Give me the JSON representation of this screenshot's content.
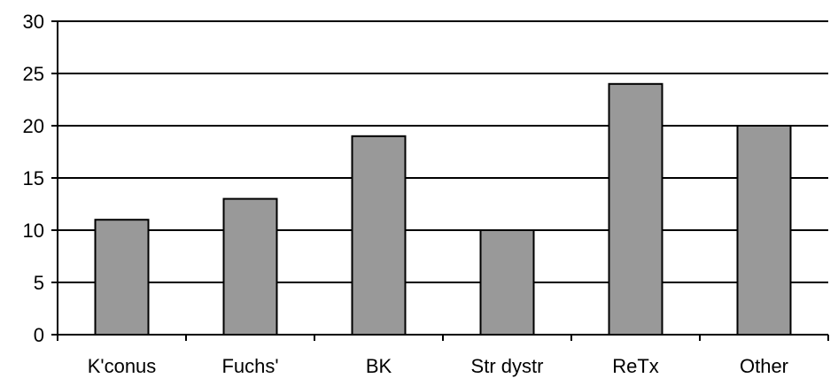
{
  "chart_data": {
    "type": "bar",
    "categories": [
      "K'conus",
      "Fuchs'",
      "BK",
      "Str dystr",
      "ReTx",
      "Other"
    ],
    "values": [
      11,
      13,
      19,
      10,
      24,
      20
    ],
    "title": "",
    "xlabel": "",
    "ylabel": "",
    "ylim": [
      0,
      30
    ],
    "yticks": [
      0,
      5,
      10,
      15,
      20,
      25,
      30
    ],
    "grid": true,
    "legend": "none",
    "colors": {
      "bar_fill": "#999999",
      "bar_stroke": "#000000",
      "grid": "#000000",
      "axis": "#000000"
    }
  }
}
